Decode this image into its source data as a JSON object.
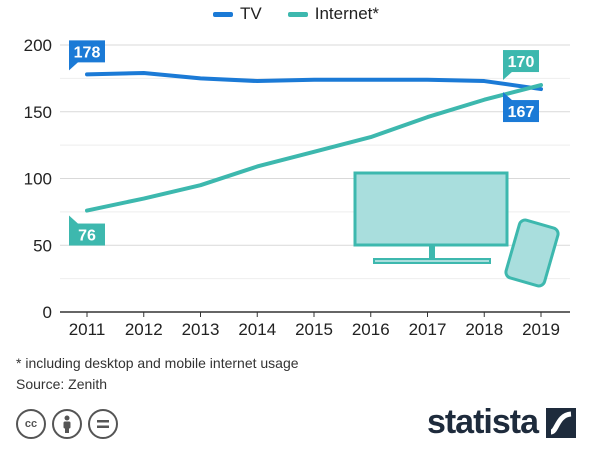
{
  "legend": [
    {
      "label": "TV",
      "color": "#1b7ad6"
    },
    {
      "label": "Internet*",
      "color": "#3db8ae"
    }
  ],
  "chart_data": {
    "type": "line",
    "x": [
      "2011",
      "2012",
      "2013",
      "2014",
      "2015",
      "2016",
      "2017",
      "2018",
      "2019"
    ],
    "series": [
      {
        "name": "TV",
        "color": "#1b7ad6",
        "values": [
          178,
          179,
          175,
          173,
          174,
          174,
          174,
          173,
          167
        ]
      },
      {
        "name": "Internet*",
        "color": "#3db8ae",
        "values": [
          76,
          85,
          95,
          109,
          120,
          131,
          146,
          159,
          170
        ]
      }
    ],
    "ylim": [
      0,
      200
    ],
    "yticks": [
      0,
      50,
      100,
      150,
      200
    ],
    "grid": true,
    "legend_position": "top-center",
    "data_labels": [
      {
        "series": "TV",
        "x": "2011",
        "value": "178"
      },
      {
        "series": "Internet*",
        "x": "2011",
        "value": "76"
      },
      {
        "series": "Internet*",
        "x": "2019",
        "value": "170"
      },
      {
        "series": "TV",
        "x": "2019",
        "value": "167"
      }
    ]
  },
  "footnote": "* including desktop and mobile internet usage",
  "source": "Source: Zenith",
  "license_icons": [
    "cc-icon",
    "attribution-icon",
    "no-derivatives-icon"
  ],
  "brand": "statista",
  "illustration": [
    "tv-icon",
    "smartphone-icon"
  ]
}
